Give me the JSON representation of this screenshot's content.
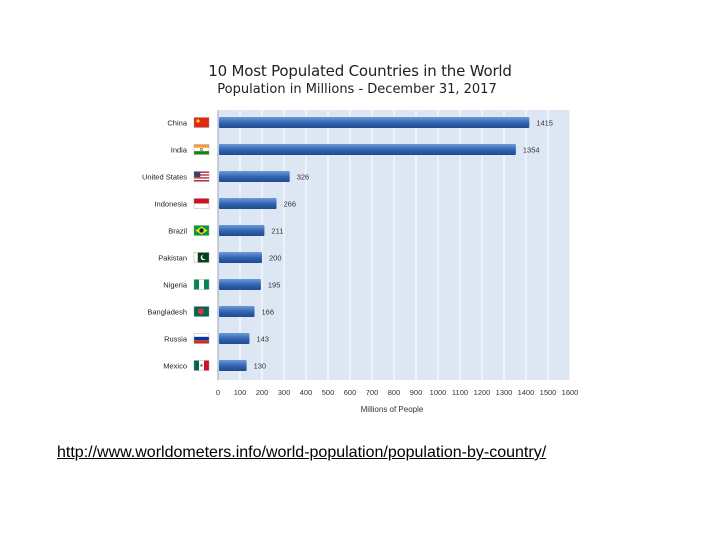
{
  "chart_data": {
    "type": "bar",
    "orientation": "horizontal",
    "title": "10 Most Populated Countries in the World",
    "subtitle": "Population in Millions  -  December 31, 2017",
    "xlabel": "Millions of People",
    "ylabel": "",
    "xlim": [
      0,
      1600
    ],
    "xticks": [
      "0",
      "100",
      "200",
      "300",
      "400",
      "500",
      "600",
      "700",
      "800",
      "900",
      "1000",
      "1100",
      "1200",
      "1300",
      "1400",
      "1500",
      "1600"
    ],
    "grid": true,
    "categories": [
      "China",
      "India",
      "United States",
      "Indonesia",
      "Brazil",
      "Pakistan",
      "Nigeria",
      "Bangladesh",
      "Russia",
      "Mexico"
    ],
    "values": [
      1415,
      1354,
      326,
      266,
      211,
      200,
      195,
      166,
      143,
      130
    ],
    "data_labels": [
      "1415",
      "1354",
      "326",
      "266",
      "211",
      "200",
      "195",
      "166",
      "143",
      "130"
    ],
    "flag_icons": [
      "china-flag-icon",
      "india-flag-icon",
      "united-states-flag-icon",
      "indonesia-flag-icon",
      "brazil-flag-icon",
      "pakistan-flag-icon",
      "nigeria-flag-icon",
      "bangladesh-flag-icon",
      "russia-flag-icon",
      "mexico-flag-icon"
    ],
    "colors": {
      "bar": "#2f62b0",
      "bar_light": "#6d9ad8",
      "plot_bg": "#dde7f3",
      "grid": "#ffffff"
    }
  },
  "source": {
    "url_text": "http://www.worldometers.info/world-population/population-by-country/"
  }
}
